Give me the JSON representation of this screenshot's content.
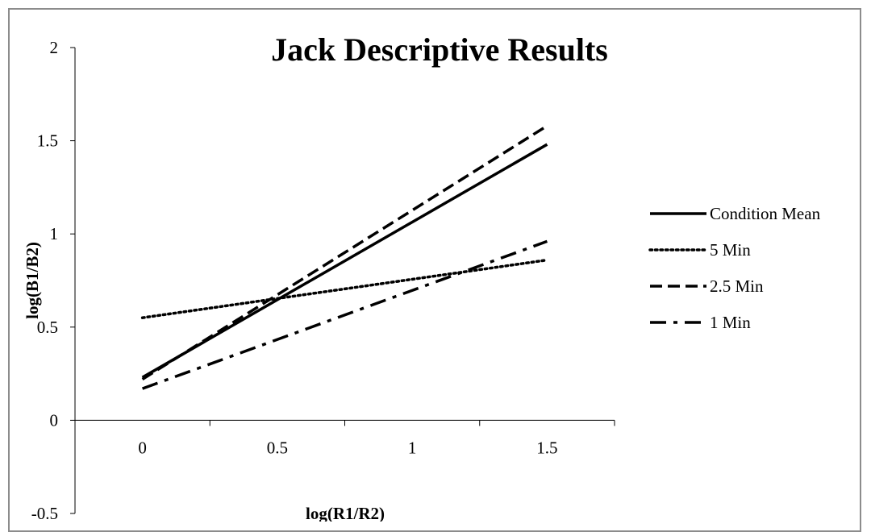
{
  "chart_data": {
    "type": "line",
    "title": "Jack Descriptive Results",
    "xlabel": "log(R1/R2)",
    "ylabel": "log(B1/B2)",
    "xlim": [
      -0.25,
      1.75
    ],
    "ylim": [
      -0.5,
      2
    ],
    "x_ticks": [
      0,
      0.5,
      1,
      1.5
    ],
    "x_tick_labels": [
      "0",
      "0.5",
      "1",
      "1.5"
    ],
    "y_ticks": [
      -0.5,
      0,
      0.5,
      1,
      1.5,
      2
    ],
    "y_tick_labels": [
      "-0.5",
      "0",
      "0.5",
      "1",
      "1.5",
      "2"
    ],
    "grid": false,
    "legend_position": "right",
    "series": [
      {
        "name": "Condition Mean",
        "style": "solid",
        "x": [
          0,
          1.5
        ],
        "y": [
          0.23,
          1.48
        ]
      },
      {
        "name": "5 Min",
        "style": "dotted",
        "x": [
          0,
          1.5
        ],
        "y": [
          0.55,
          0.86
        ]
      },
      {
        "name": "2.5 Min",
        "style": "dashed",
        "x": [
          0,
          1.5
        ],
        "y": [
          0.22,
          1.58
        ]
      },
      {
        "name": "1 Min",
        "style": "dashdot",
        "x": [
          0,
          1.5
        ],
        "y": [
          0.17,
          0.96
        ]
      }
    ],
    "colors": {
      "series": "#000000",
      "axis": "#000000",
      "frame": "#8c8c8c"
    }
  }
}
